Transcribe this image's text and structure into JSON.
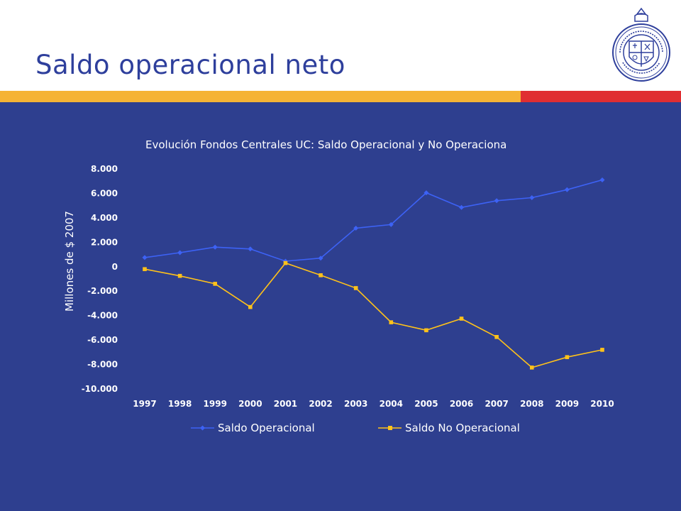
{
  "slide": {
    "title": "Saldo operacional neto",
    "colors": {
      "title": "#2e3f9c",
      "background_panel": "#2e3f8f",
      "bar_orange": "#f5b335",
      "bar_red": "#e02e32"
    },
    "logo": "pontificia-universidad-catolica-de-chile-seal"
  },
  "chart_data": {
    "type": "line",
    "title": "Evolución Fondos Centrales UC: Saldo Operacional y No Operacional",
    "title_visible": "Evolución Fondos Centrales UC: Saldo Operacional y No Operaciona",
    "ylabel": "Millones de $ 2007",
    "xlabel": "",
    "ylim": [
      -10000,
      8000
    ],
    "yticks": [
      8000,
      6000,
      4000,
      2000,
      0,
      -2000,
      -4000,
      -6000,
      -8000,
      -10000
    ],
    "ytick_labels": [
      "8.000",
      "6.000",
      "4.000",
      "2.000",
      "0",
      "-2.000",
      "-4.000",
      "-6.000",
      "-8.000",
      "-10.000"
    ],
    "x": [
      "1997",
      "1998",
      "1999",
      "2000",
      "2001",
      "2002",
      "2003",
      "2004",
      "2005",
      "2006",
      "2007",
      "2008",
      "2009",
      "2010"
    ],
    "grid": false,
    "legend": "bottom",
    "series": [
      {
        "name": "Saldo Operacional",
        "color": "#3d62f5",
        "marker": "diamond",
        "values": [
          750,
          1150,
          1600,
          1450,
          450,
          700,
          3150,
          3450,
          6050,
          4850,
          5400,
          5650,
          6300,
          7100
        ]
      },
      {
        "name": "Saldo No Operacional",
        "color": "#ffc21a",
        "marker": "square",
        "values": [
          -200,
          -750,
          -1400,
          -3300,
          300,
          -700,
          -1750,
          -4550,
          -5200,
          -4250,
          -5750,
          -8250,
          -7400,
          -6800
        ]
      }
    ]
  }
}
